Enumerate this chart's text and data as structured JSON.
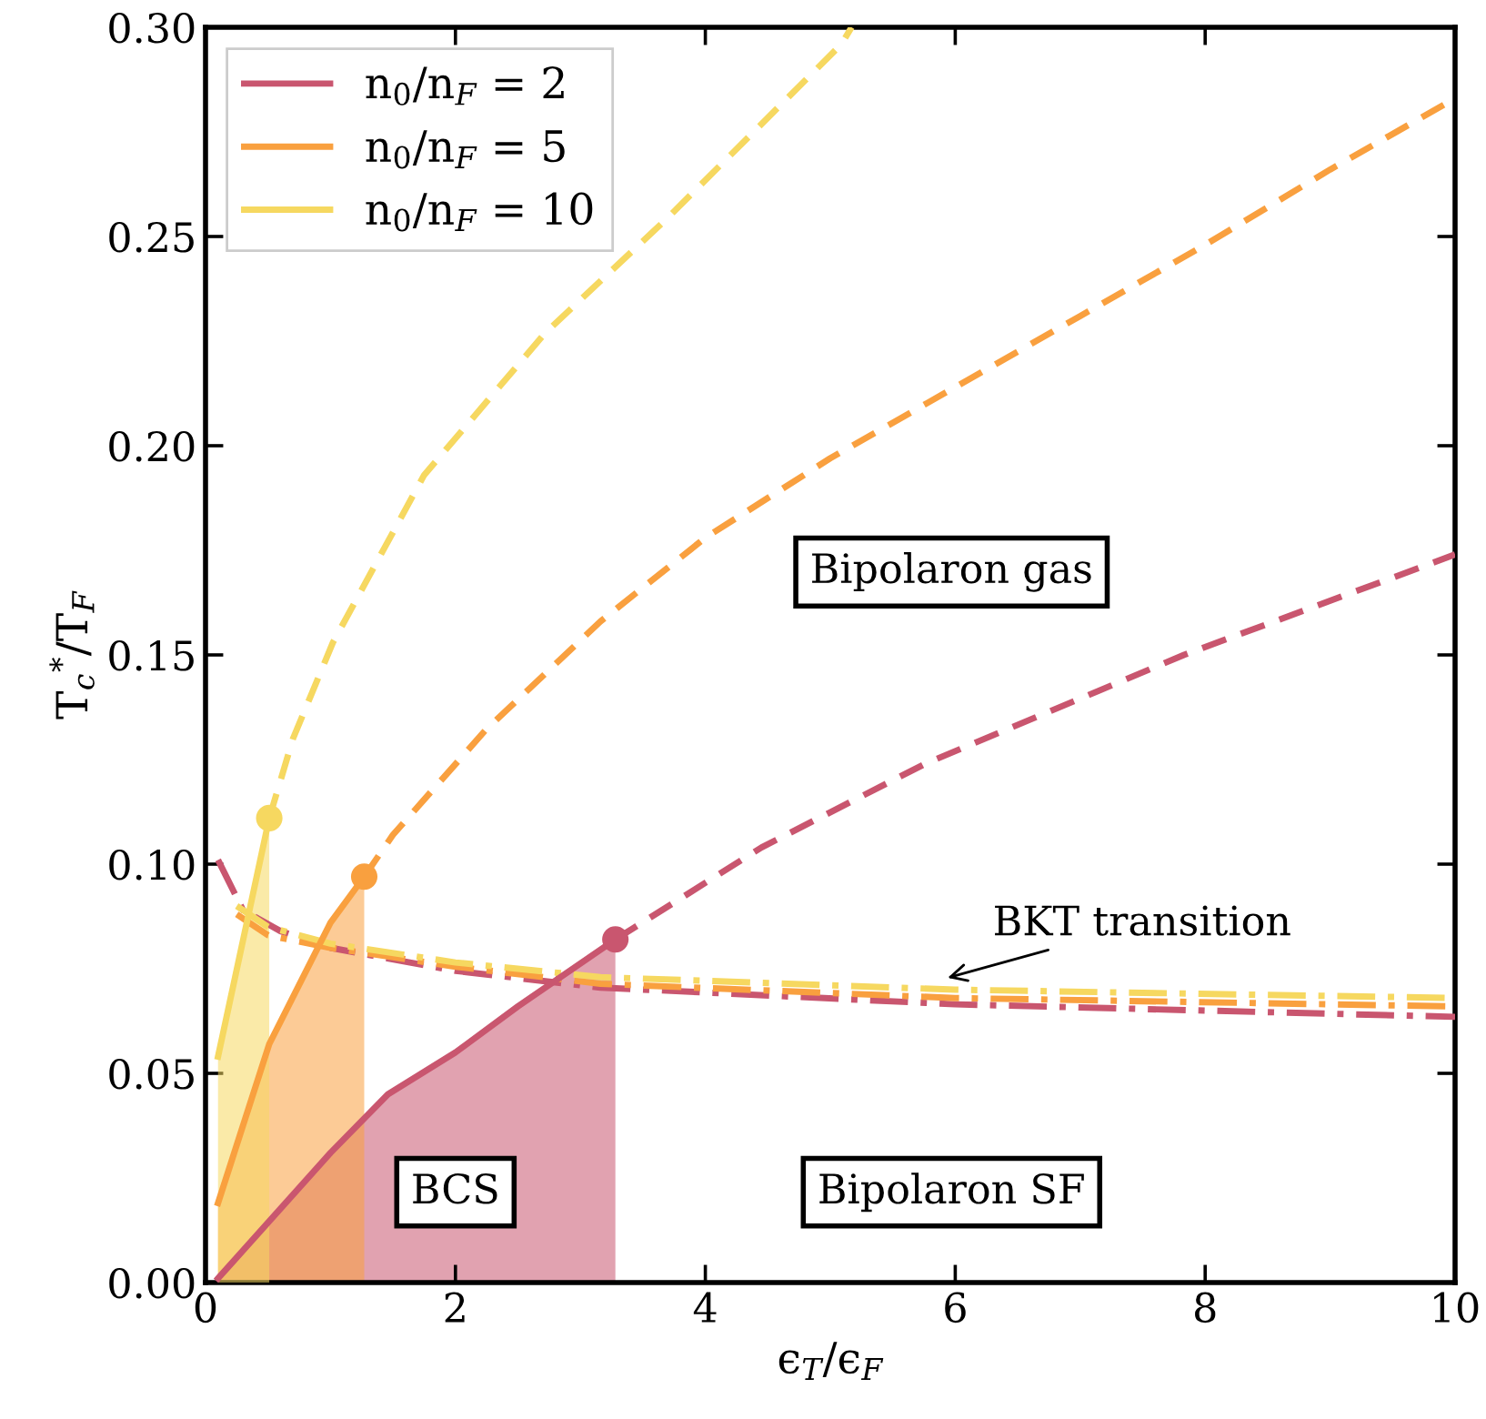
{
  "chart_data": {
    "type": "line",
    "xlabel": "ϵ$_{T}$/ϵ$_{F}$",
    "ylabel": "T$_{c}$$^{*}$/T$_{F}$",
    "xlim": [
      0,
      10
    ],
    "ylim": [
      0,
      0.3
    ],
    "xticks": [
      0,
      2,
      4,
      6,
      8,
      10
    ],
    "yticks": [
      {
        "value": 0,
        "label": "0.00"
      },
      {
        "value": 0.05,
        "label": "0.05"
      },
      {
        "value": 0.1,
        "label": "0.10"
      },
      {
        "value": 0.15,
        "label": "0.15"
      },
      {
        "value": 0.2,
        "label": "0.20"
      },
      {
        "value": 0.25,
        "label": "0.25"
      },
      {
        "value": 0.3,
        "label": "0.30"
      }
    ],
    "grid": false,
    "legend": "top left",
    "series": [
      {
        "type": "area",
        "name": "n$_{0}$/n$_{F}$ = 2",
        "color": "#c9566f",
        "line_style": "solid",
        "x": [
          0.1,
          1.0,
          1.46,
          2.0,
          2.5,
          3.28
        ],
        "values": [
          0.001,
          0.031,
          0.045,
          0.055,
          0.066,
          0.082
        ]
      },
      {
        "type": "area",
        "name": "n$_{0}$/n$_{F}$ = 5",
        "color": "#f9a03f",
        "line_style": "solid",
        "x": [
          0.1,
          0.51,
          1.0,
          1.27
        ],
        "values": [
          0.019,
          0.057,
          0.086,
          0.097
        ]
      },
      {
        "type": "area",
        "name": "n$_{0}$/n$_{F}$ = 10",
        "color": "#f6d860",
        "line_style": "solid",
        "x": [
          0.1,
          0.51
        ],
        "values": [
          0.054,
          0.111
        ]
      },
      {
        "color": "#c9566f",
        "line_style": "dashed",
        "x": [
          3.28,
          4.45,
          5.76,
          7.83,
          10
        ],
        "values": [
          0.082,
          0.104,
          0.124,
          0.15,
          0.174
        ]
      },
      {
        "color": "#f9a03f",
        "line_style": "dashed",
        "x": [
          1.27,
          1.5,
          2.24,
          3.16,
          4,
          5,
          6,
          7,
          8,
          9,
          10
        ],
        "values": [
          0.097,
          0.107,
          0.132,
          0.158,
          0.178,
          0.197,
          0.214,
          0.231,
          0.248,
          0.266,
          0.283
        ]
      },
      {
        "color": "#f6d860",
        "line_style": "dashed",
        "x": [
          0.51,
          0.7,
          1.02,
          1.75,
          2.72,
          3.7,
          5.09,
          5.17
        ],
        "values": [
          0.111,
          0.13,
          0.153,
          0.193,
          0.227,
          0.2545,
          0.296,
          0.3
        ]
      },
      {
        "color": "#c9566f",
        "line_style": "dashdot",
        "x": [
          0.1,
          0.3,
          0.6,
          1,
          2,
          3.16,
          6,
          10
        ],
        "values": [
          0.101,
          0.089,
          0.084,
          0.08,
          0.0745,
          0.0705,
          0.0665,
          0.0635
        ]
      },
      {
        "color": "#f9a03f",
        "line_style": "dashdot",
        "x": [
          0.25,
          0.5,
          1,
          2,
          3.16,
          6,
          10
        ],
        "values": [
          0.088,
          0.083,
          0.08,
          0.0755,
          0.0714,
          0.068,
          0.066
        ]
      },
      {
        "color": "#f6d860",
        "line_style": "dashdot",
        "x": [
          0.25,
          0.5,
          1,
          2,
          3.16,
          6,
          10
        ],
        "values": [
          0.09,
          0.085,
          0.081,
          0.0765,
          0.073,
          0.07,
          0.068
        ]
      },
      {
        "type": "scatter",
        "marker": "circle",
        "x": [
          3.28,
          1.27,
          0.51
        ],
        "values": [
          0.082,
          0.097,
          0.111
        ],
        "colors": [
          "#c9566f",
          "#f9a03f",
          "#f6d860"
        ]
      }
    ],
    "annotations": [
      "Bipolaron gas",
      "BCS",
      "Bipolaron SF",
      {
        "text": "BKT transition",
        "x": 5.9,
        "y": 0.0725
      }
    ]
  }
}
